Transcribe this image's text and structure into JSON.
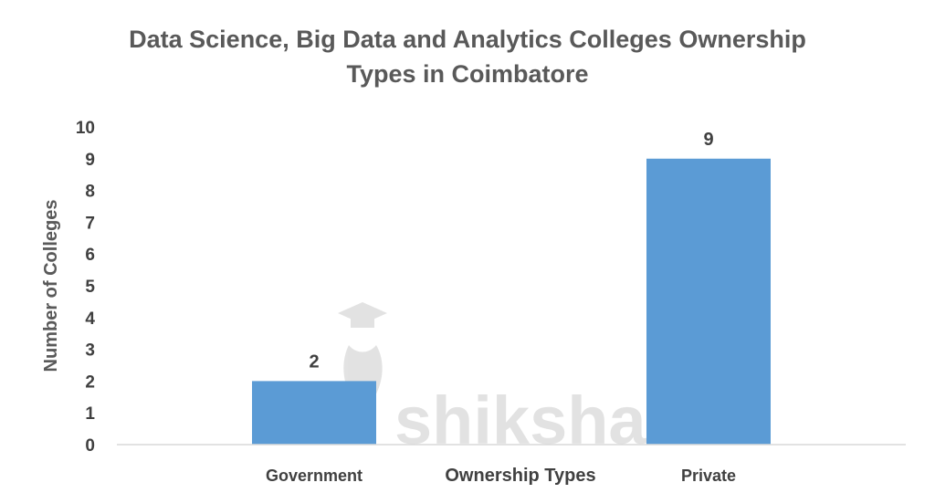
{
  "chart_data": {
    "type": "bar",
    "title_lines": [
      "Data Science, Big Data and Analytics Colleges Ownership",
      "Types in Coimbatore"
    ],
    "categories": [
      "Government",
      "Private"
    ],
    "values": [
      2,
      9
    ],
    "data_labels": [
      "2",
      "9"
    ],
    "xlabel": "Ownership Types",
    "ylabel": "Number of Colleges",
    "ylim": [
      0,
      10
    ],
    "yticks": [
      "0",
      "1",
      "2",
      "3",
      "4",
      "5",
      "6",
      "7",
      "8",
      "9",
      "10"
    ],
    "grid": false,
    "legend": "none",
    "bar_color": "#5B9BD5",
    "watermark": "shiksha"
  }
}
